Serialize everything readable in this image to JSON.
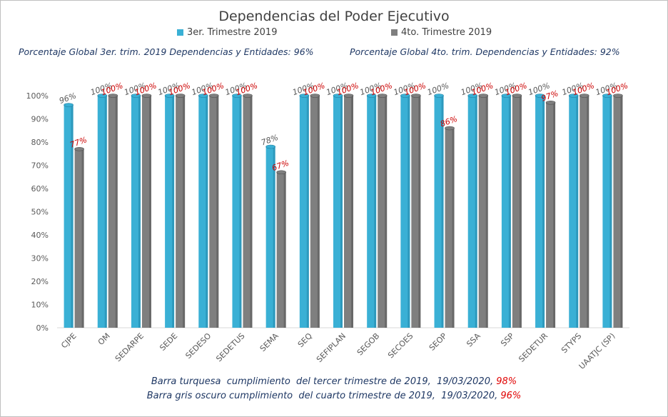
{
  "title": "Dependencias del Poder Ejecutivo",
  "legend": {
    "q3_label": "3er. Trimestre 2019",
    "q4_label": "4to. Trimestre 2019"
  },
  "global": {
    "q3_text": "Porcentaje Global 3er. trim. 2019 Dependencias y Entidades: 96%",
    "q4_text": "Porcentaje Global  4to. trim. Dependencias y Entidades: 92%"
  },
  "footnotes": {
    "line1_text": "Barra turquesa  cumplimiento  del tercer trimestre de 2019,  19/03/2020, ",
    "line1_value": "98%",
    "line2_text": "Barra gris oscuro cumplimiento  del cuarto trimestre de 2019,  19/03/2020, ",
    "line2_value": "96%"
  },
  "colors": {
    "q3": "#3ab0d5",
    "q4": "#7f7f7f",
    "q4_label": "#cc0000",
    "axis_text": "#595959"
  },
  "chart_data": {
    "type": "bar",
    "title": "Dependencias del Poder Ejecutivo",
    "ylim": [
      0,
      100
    ],
    "yticks": [
      "0%",
      "10%",
      "20%",
      "30%",
      "40%",
      "50%",
      "60%",
      "70%",
      "80%",
      "90%",
      "100%"
    ],
    "grid": false,
    "legend_position": "top",
    "categories": [
      "CJPE",
      "OM",
      "SEDARPE",
      "SEDE",
      "SEDESO",
      "SEDETUS",
      "SEMA",
      "SEQ",
      "SEFIPLAN",
      "SEGOB",
      "SECOES",
      "SEOP",
      "SSA",
      "SSP",
      "SEDETUR",
      "STYPS",
      "UAATJC (SP)"
    ],
    "series": [
      {
        "name": "3er. Trimestre 2019",
        "values": [
          96,
          100,
          100,
          100,
          100,
          100,
          78,
          100,
          100,
          100,
          100,
          100,
          100,
          100,
          100,
          100,
          100
        ],
        "labels": [
          "96%",
          "100%",
          "100%",
          "100%",
          "100%",
          "100%",
          "78%",
          "100%",
          "100%",
          "100%",
          "100%",
          "100%",
          "100%",
          "100%",
          "100%",
          "100%",
          "100%"
        ]
      },
      {
        "name": "4to. Trimestre 2019",
        "values": [
          77,
          100,
          100,
          100,
          100,
          100,
          67,
          100,
          100,
          100,
          100,
          86,
          100,
          100,
          97,
          100,
          100
        ],
        "labels": [
          "77%",
          "100%",
          "100%",
          "100%",
          "100%",
          "100%",
          "67%",
          "100%",
          "100%",
          "100%",
          "100%",
          "86%",
          "100%",
          "100%",
          "97%",
          "100%",
          "100%"
        ]
      }
    ]
  }
}
